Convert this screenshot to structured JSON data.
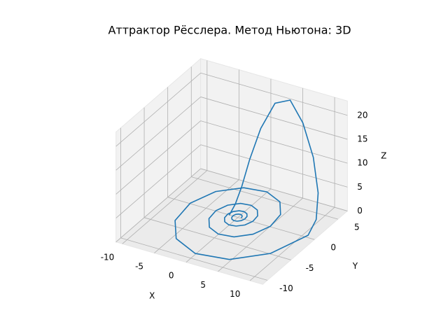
{
  "chart_data": {
    "type": "line3d",
    "title": "Аттрактор Рёсслера. Метод Ньютона: 3D",
    "xlabel": "X",
    "ylabel": "Y",
    "zlabel": "Z",
    "xlim": [
      -11,
      12
    ],
    "ylim": [
      -11,
      7
    ],
    "zlim": [
      0,
      23
    ],
    "xticks": [
      -10,
      -5,
      0,
      5,
      10
    ],
    "yticks": [
      -10,
      -5,
      0,
      5
    ],
    "zticks": [
      0,
      5,
      10,
      15,
      20
    ],
    "grid": true,
    "series": [
      {
        "color": "#1f77b4",
        "x": [
          0.5,
          0.46,
          0.28,
          0,
          -0.32,
          -0.6,
          -0.74,
          -0.68,
          -0.42,
          0,
          0.48,
          0.88,
          1.08,
          1.0,
          0.62,
          0,
          -0.7,
          -1.29,
          -1.59,
          -1.47,
          -0.91,
          0,
          1.03,
          1.91,
          2.35,
          2.17,
          1.34,
          0,
          -1.52,
          -2.81,
          -3.45,
          -3.19,
          -1.97,
          0,
          2.24,
          4.12,
          5.08,
          4.69,
          2.89,
          0,
          -3.29,
          -6.07,
          -7.48,
          -6.91,
          -4.25,
          0,
          4.84,
          8.92,
          11,
          10.8,
          10,
          8.5,
          6.5,
          4.5,
          2.5,
          1,
          0,
          -0.5,
          -0.8,
          -1
        ],
        "y": [
          0,
          0.27,
          0.49,
          0.61,
          0.56,
          0.35,
          0,
          -0.39,
          -0.72,
          -0.89,
          -0.82,
          -0.51,
          0,
          0.58,
          1.07,
          1.31,
          1.21,
          0.75,
          0,
          -0.85,
          -1.57,
          -1.93,
          -1.78,
          -1.1,
          0,
          1.25,
          2.31,
          2.85,
          2.63,
          1.62,
          0,
          -1.84,
          -3.4,
          -4.19,
          -3.87,
          -2.38,
          0,
          2.71,
          5.01,
          6.16,
          5.69,
          3.5,
          0,
          -3.99,
          -7.36,
          -9.07,
          -8.37,
          -5.15,
          0,
          2,
          3.5,
          4.5,
          5,
          5,
          4.5,
          3.5,
          2.5,
          1.5,
          0.5,
          -0.5
        ],
        "z": [
          0.1,
          0.1,
          0.1,
          0.1,
          0.1,
          0.1,
          0.1,
          0.1,
          0.1,
          0.1,
          0.1,
          0.1,
          0.1,
          0.1,
          0.1,
          0.1,
          0.1,
          0.1,
          0.1,
          0.1,
          0.1,
          0.1,
          0.1,
          0.1,
          0.1,
          0.1,
          0.1,
          0.1,
          0.1,
          0.1,
          0.1,
          0.1,
          0.1,
          0.1,
          0.1,
          0.1,
          0.1,
          0.1,
          0.1,
          0.1,
          0.1,
          0.1,
          0.1,
          0.1,
          0.2,
          0.2,
          0.2,
          0.3,
          0.5,
          2,
          6,
          12,
          18,
          22,
          21,
          16,
          10,
          5,
          2,
          0.5
        ]
      }
    ]
  }
}
